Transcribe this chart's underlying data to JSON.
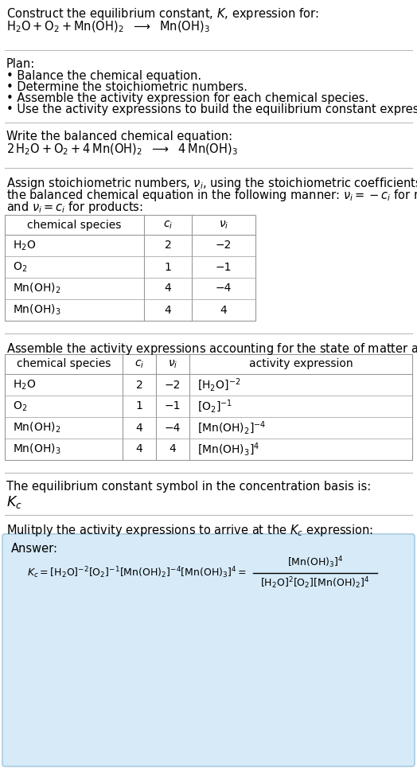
{
  "title_line1": "Construct the equilibrium constant, $K$, expression for:",
  "title_line2_plain": "H₂O + O₂ + Mn(OH)₂  ⟶  Mn(OH)₃",
  "plan_header": "Plan:",
  "plan_items": [
    "• Balance the chemical equation.",
    "• Determine the stoichiometric numbers.",
    "• Assemble the activity expression for each chemical species.",
    "• Use the activity expressions to build the equilibrium constant expression."
  ],
  "balanced_header": "Write the balanced chemical equation:",
  "balanced_eq": "2 H₂O + O₂ + 4 Mn(OH)₂  ⟶  4 Mn(OH)₃",
  "stoich_lines": [
    "Assign stoichiometric numbers, $\\nu_i$, using the stoichiometric coefficients, $c_i$, from",
    "the balanced chemical equation in the following manner: $\\nu_i = -c_i$ for reactants",
    "and $\\nu_i = c_i$ for products:"
  ],
  "table1_rows": [
    [
      "H₂O",
      "2",
      "−2"
    ],
    [
      "O₂",
      "1",
      "−1"
    ],
    [
      "Mn(OH)₂",
      "4",
      "−4"
    ],
    [
      "Mn(OH)₃",
      "4",
      "4"
    ]
  ],
  "table2_rows": [
    [
      "H₂O",
      "2",
      "−2",
      "[H₂O]⁻²"
    ],
    [
      "O₂",
      "1",
      "−1",
      "[O₂]⁻¹"
    ],
    [
      "Mn(OH)₂",
      "4",
      "−4",
      "[Mn(OH)₂]⁻⁴"
    ],
    [
      "Mn(OH)₃",
      "4",
      "4",
      "[Mn(OH)₃]⁴"
    ]
  ],
  "activity_header": "Assemble the activity expressions accounting for the state of matter and $\\nu_i$:",
  "kc_text": "The equilibrium constant symbol in the concentration basis is:",
  "kc_symbol": "$K_c$",
  "multiply_header": "Mulitply the activity expressions to arrive at the $K_c$ expression:",
  "answer_label": "Answer:",
  "answer_box_color": "#d6eaf8",
  "answer_box_edge": "#a9cce3",
  "bg_color": "#ffffff",
  "text_color": "#000000",
  "table_line_color": "#999999",
  "section_line_color": "#bbbbbb",
  "font_size": 10.5,
  "small_font_size": 10.0
}
